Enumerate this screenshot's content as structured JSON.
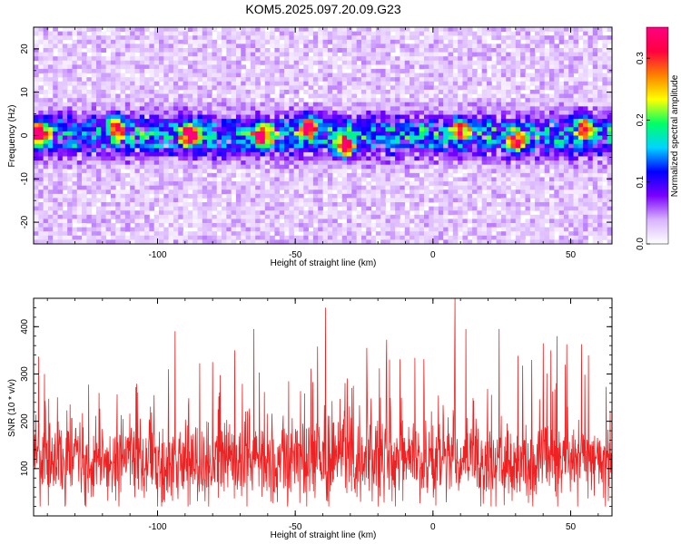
{
  "title": "KOM5.2025.097.20.09.G23",
  "chart_data": [
    {
      "type": "heatmap",
      "xlabel": "Height of straight line (km)",
      "ylabel": "Frequency (Hz)",
      "xlim": [
        -145,
        65
      ],
      "ylim": [
        -25,
        25
      ],
      "xticks": [
        -100,
        -50,
        0,
        50
      ],
      "yticks": [
        -20,
        -10,
        0,
        10,
        20
      ],
      "colorbar": {
        "label": "Normalized spectral amplitude",
        "range": [
          0.0,
          0.35
        ],
        "ticks": [
          0.0,
          0.1,
          0.2,
          0.3
        ],
        "colormap": [
          "#ffffff",
          "#d9b3ff",
          "#7a00ff",
          "#0000ff",
          "#00d5ff",
          "#00ff66",
          "#ffff00",
          "#ff8000",
          "#ff0040",
          "#ff0080"
        ]
      },
      "description_band": {
        "center_hz": 0,
        "halfwidth_hz": 8,
        "background_amplitude": 0.03,
        "band_amplitude": 0.12,
        "peak_amplitude": 0.33,
        "peaks": [
          {
            "x": -143,
            "y": 0.5,
            "v": 0.33
          },
          {
            "x": -88,
            "y": 0,
            "v": 0.3
          },
          {
            "x": -62,
            "y": 0,
            "v": 0.3
          },
          {
            "x": -45,
            "y": 2,
            "v": 0.28
          },
          {
            "x": -32,
            "y": -2.5,
            "v": 0.3
          },
          {
            "x": -115,
            "y": 2,
            "v": 0.24
          },
          {
            "x": 10,
            "y": 1.5,
            "v": 0.22
          },
          {
            "x": 30,
            "y": -1.5,
            "v": 0.24
          },
          {
            "x": 55,
            "y": 2,
            "v": 0.22
          }
        ]
      }
    },
    {
      "type": "line",
      "xlabel": "Height of straight line (km)",
      "ylabel": "SNR (10 * v/v)",
      "xlim": [
        -145,
        65
      ],
      "ylim": [
        0,
        460
      ],
      "xticks": [
        -100,
        -50,
        0,
        50
      ],
      "yticks": [
        100,
        200,
        300,
        400
      ],
      "series": [
        {
          "color": "#ee2222",
          "mean": 115,
          "spread": 55,
          "min": 20,
          "max": 460,
          "peaks": [
            {
              "x": -39,
              "y": 440
            },
            {
              "x": 8,
              "y": 460
            },
            {
              "x": 12,
              "y": 395
            },
            {
              "x": -65,
              "y": 395
            },
            {
              "x": 24,
              "y": 395
            },
            {
              "x": 40,
              "y": 365
            },
            {
              "x": 45,
              "y": 380
            },
            {
              "x": -141,
              "y": 300
            },
            {
              "x": -80,
              "y": 325
            },
            {
              "x": -96,
              "y": 310
            },
            {
              "x": -72,
              "y": 350
            },
            {
              "x": -24,
              "y": 355
            }
          ]
        }
      ]
    }
  ]
}
